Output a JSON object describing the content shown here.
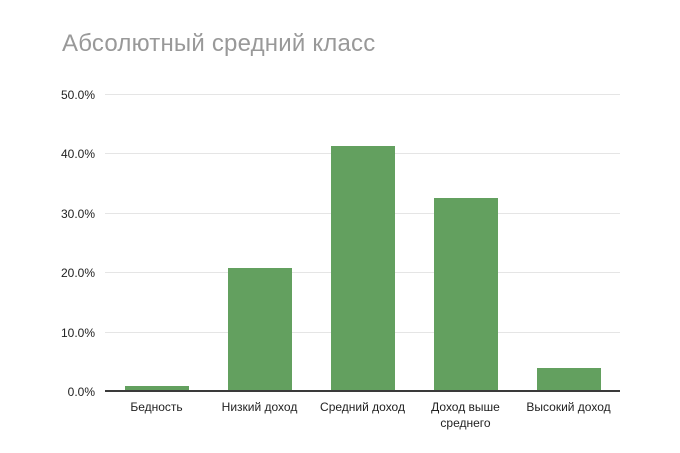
{
  "page": {
    "background": "#ffffff"
  },
  "chart_data": {
    "type": "bar",
    "title": "Абсолютный средний класс",
    "categories": [
      "Бедность",
      "Низкий доход",
      "Средний доход",
      "Доход выше среднего",
      "Высокий доход"
    ],
    "values": [
      1.0,
      20.8,
      41.5,
      32.6,
      4.0
    ],
    "unit": "%",
    "xlabel": "",
    "ylabel": "",
    "ylim": [
      0,
      50
    ],
    "ytick_values": [
      0,
      10,
      20,
      30,
      40,
      50
    ],
    "ytick_labels": [
      "0.0%",
      "10.0%",
      "20.0%",
      "30.0%",
      "40.0%",
      "50.0%"
    ],
    "grid": true,
    "legend": "none",
    "colors": {
      "bar": "#63a05f",
      "gridline": "#e5e5e5",
      "axis_line": "#3a3a3a",
      "title_text": "#999999",
      "label_text": "#222222"
    }
  }
}
